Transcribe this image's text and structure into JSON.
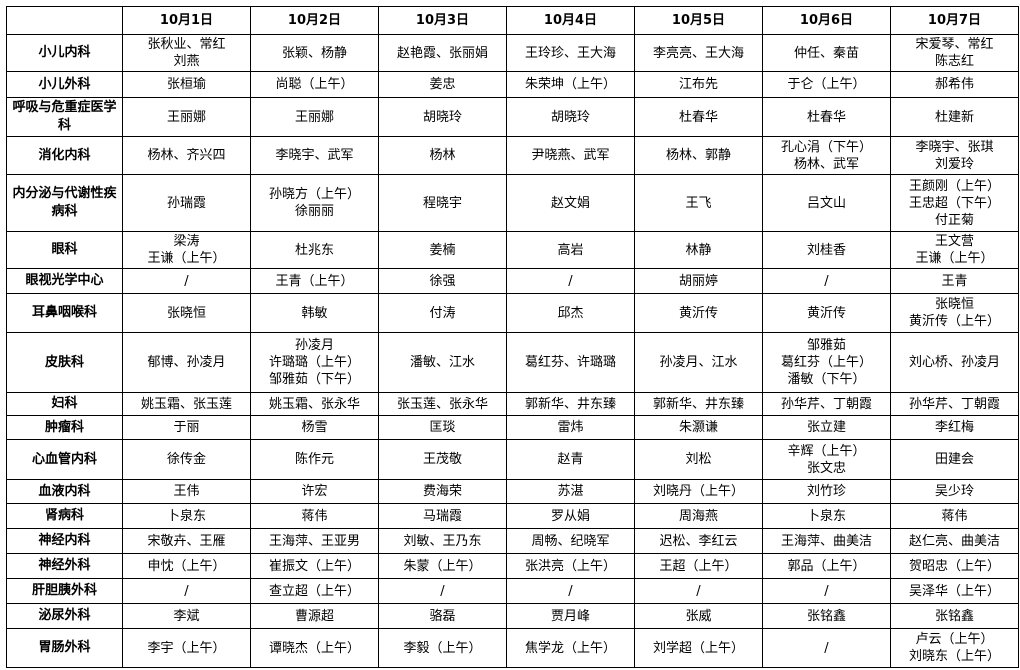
{
  "header": {
    "corner": "",
    "dates": [
      "10月1日",
      "10月2日",
      "10月3日",
      "10月4日",
      "10月5日",
      "10月6日",
      "10月7日"
    ]
  },
  "rows": [
    {
      "dept": "小儿内科",
      "cells": [
        [
          "张秋业、常红",
          "刘燕"
        ],
        [
          "张颖、杨静"
        ],
        [
          "赵艳霞、张丽娟"
        ],
        [
          "王玲珍、王大海"
        ],
        [
          "李亮亮、王大海"
        ],
        [
          "仲任、秦苗"
        ],
        [
          "宋爱琴、常红",
          "陈志红"
        ]
      ]
    },
    {
      "dept": "小儿外科",
      "cells": [
        [
          "张桓瑜"
        ],
        [
          "尚聪（上午）"
        ],
        [
          "姜忠"
        ],
        [
          "朱荣坤（上午）"
        ],
        [
          "江布先"
        ],
        [
          "于仑（上午）"
        ],
        [
          "郝希伟"
        ]
      ]
    },
    {
      "dept": "呼吸与危重症医学科",
      "cells": [
        [
          "王丽娜"
        ],
        [
          "王丽娜"
        ],
        [
          "胡晓玲"
        ],
        [
          "胡晓玲"
        ],
        [
          "杜春华"
        ],
        [
          "杜春华"
        ],
        [
          "杜建新"
        ]
      ]
    },
    {
      "dept": "消化内科",
      "cells": [
        [
          "杨林、齐兴四"
        ],
        [
          "李晓宇、武军"
        ],
        [
          "杨林"
        ],
        [
          "尹晓燕、武军"
        ],
        [
          "杨林、郭静"
        ],
        [
          "孔心涓（下午）",
          "杨林、武军"
        ],
        [
          "李晓宇、张琪",
          "刘爱玲"
        ]
      ]
    },
    {
      "dept": "内分泌与代谢性疾病科",
      "cells": [
        [
          "孙瑞霞"
        ],
        [
          "孙晓方（上午）",
          "徐丽丽"
        ],
        [
          "程晓宇"
        ],
        [
          "赵文娟"
        ],
        [
          "王飞"
        ],
        [
          "吕文山"
        ],
        [
          "王颜刚（上午）",
          "王忠超（下午）",
          "付正菊"
        ]
      ]
    },
    {
      "dept": "眼科",
      "cells": [
        [
          "梁涛",
          "王谦（上午）"
        ],
        [
          "杜兆东"
        ],
        [
          "姜楠"
        ],
        [
          "高岩"
        ],
        [
          "林静"
        ],
        [
          "刘桂香"
        ],
        [
          "王文营",
          "王谦（上午）"
        ]
      ]
    },
    {
      "dept": "眼视光学中心",
      "cells": [
        [
          "/"
        ],
        [
          "王青（上午）"
        ],
        [
          "徐强"
        ],
        [
          "/"
        ],
        [
          "胡丽婷"
        ],
        [
          "/"
        ],
        [
          "王青"
        ]
      ]
    },
    {
      "dept": "耳鼻咽喉科",
      "cells": [
        [
          "张晓恒"
        ],
        [
          "韩敏"
        ],
        [
          "付涛"
        ],
        [
          "邱杰"
        ],
        [
          "黄沂传"
        ],
        [
          "黄沂传"
        ],
        [
          "张晓恒",
          "黄沂传（上午）"
        ]
      ]
    },
    {
      "dept": "皮肤科",
      "cells": [
        [
          "郁博、孙凌月"
        ],
        [
          "孙凌月",
          "许璐璐（上午）",
          "邹雅茹（下午）"
        ],
        [
          "潘敏、江水"
        ],
        [
          "葛红芬、许璐璐"
        ],
        [
          "孙凌月、江水"
        ],
        [
          "邹雅茹",
          "葛红芬（上午）",
          "潘敏（下午）"
        ],
        [
          "刘心桥、孙凌月"
        ]
      ]
    },
    {
      "dept": "妇科",
      "cells": [
        [
          "姚玉霜、张玉莲"
        ],
        [
          "姚玉霜、张永华"
        ],
        [
          "张玉莲、张永华"
        ],
        [
          "郭新华、井东臻"
        ],
        [
          "郭新华、井东臻"
        ],
        [
          "孙华芹、丁朝霞"
        ],
        [
          "孙华芹、丁朝霞"
        ]
      ]
    },
    {
      "dept": "肿瘤科",
      "cells": [
        [
          "于丽"
        ],
        [
          "杨雪"
        ],
        [
          "匡琰"
        ],
        [
          "雷炜"
        ],
        [
          "朱灏谦"
        ],
        [
          "张立建"
        ],
        [
          "李红梅"
        ]
      ]
    },
    {
      "dept": "心血管内科",
      "cells": [
        [
          "徐传金"
        ],
        [
          "陈作元"
        ],
        [
          "王茂敬"
        ],
        [
          "赵青"
        ],
        [
          "刘松"
        ],
        [
          "辛辉（上午）",
          "张文忠"
        ],
        [
          "田建会"
        ]
      ]
    },
    {
      "dept": "血液内科",
      "cells": [
        [
          "王伟"
        ],
        [
          "许宏"
        ],
        [
          "费海荣"
        ],
        [
          "苏湛"
        ],
        [
          "刘晓丹（上午）"
        ],
        [
          "刘竹珍"
        ],
        [
          "吴少玲"
        ]
      ]
    },
    {
      "dept": "肾病科",
      "cells": [
        [
          "卜泉东"
        ],
        [
          "蒋伟"
        ],
        [
          "马瑞霞"
        ],
        [
          "罗从娟"
        ],
        [
          "周海燕"
        ],
        [
          "卜泉东"
        ],
        [
          "蒋伟"
        ]
      ]
    },
    {
      "dept": "神经内科",
      "cells": [
        [
          "宋敬卉、王雁"
        ],
        [
          "王海萍、王亚男"
        ],
        [
          "刘敏、王乃东"
        ],
        [
          "周畅、纪晓军"
        ],
        [
          "迟松、李红云"
        ],
        [
          "王海萍、曲美洁"
        ],
        [
          "赵仁亮、曲美洁"
        ]
      ]
    },
    {
      "dept": "神经外科",
      "cells": [
        [
          "申忱（上午）"
        ],
        [
          "崔振文（上午）"
        ],
        [
          "朱蒙（上午）"
        ],
        [
          "张洪亮（上午）"
        ],
        [
          "王超（上午）"
        ],
        [
          "郭品（上午）"
        ],
        [
          "贺昭忠（上午）"
        ]
      ]
    },
    {
      "dept": "肝胆胰外科",
      "cells": [
        [
          "/"
        ],
        [
          "查立超（上午）"
        ],
        [
          "/"
        ],
        [
          "/"
        ],
        [
          "/"
        ],
        [
          "/"
        ],
        [
          "吴泽华（上午）"
        ]
      ]
    },
    {
      "dept": "泌尿外科",
      "cells": [
        [
          "李斌"
        ],
        [
          "曹源超"
        ],
        [
          "骆磊"
        ],
        [
          "贾月峰"
        ],
        [
          "张威"
        ],
        [
          "张铭鑫"
        ],
        [
          "张铭鑫"
        ]
      ]
    },
    {
      "dept": "胃肠外科",
      "cells": [
        [
          "李宇（上午）"
        ],
        [
          "谭晓杰（上午）"
        ],
        [
          "李毅（上午）"
        ],
        [
          "焦学龙（上午）"
        ],
        [
          "刘学超（上午）"
        ],
        [
          "/"
        ],
        [
          "卢云（上午）",
          "刘晓东（上午）"
        ]
      ]
    }
  ]
}
